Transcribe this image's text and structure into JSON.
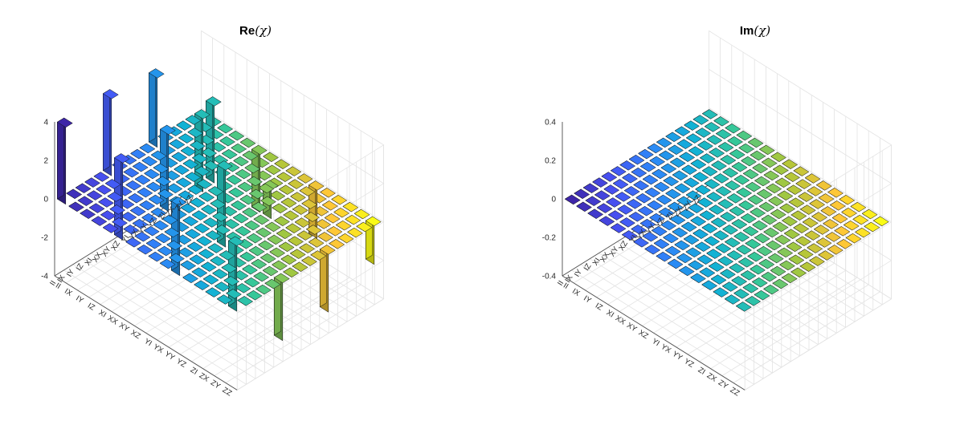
{
  "chart_data": [
    {
      "type": "bar3d",
      "title_text": "Re",
      "title_symbol": "(χ)",
      "zlim": [
        -4,
        4
      ],
      "zticks": [
        {
          "v": -4,
          "label": "-4"
        },
        {
          "v": -2,
          "label": "-2"
        },
        {
          "v": 0,
          "label": "0"
        },
        {
          "v": 2,
          "label": "2"
        },
        {
          "v": 4,
          "label": "4"
        }
      ],
      "row_labels": [
        "II",
        "IX",
        "IY",
        "IZ",
        "XI",
        "XX",
        "XY",
        "XZ",
        "YI",
        "YX",
        "YY",
        "YZ",
        "ZI",
        "ZX",
        "ZY",
        "ZZ"
      ],
      "col_labels": [
        "II",
        "IX",
        "IY",
        "IZ",
        "XI",
        "XX",
        "XY",
        "XZ",
        "YI",
        "YX",
        "YY",
        "YZ",
        "ZI",
        "ZX",
        "ZY",
        "ZZ"
      ],
      "nonzero": [
        {
          "row": 0,
          "col": 0,
          "value": 4.0
        },
        {
          "row": 0,
          "col": 5,
          "value": 4.0
        },
        {
          "row": 0,
          "col": 10,
          "value": 3.6
        },
        {
          "row": 0,
          "col": 15,
          "value": 3.4
        },
        {
          "row": 5,
          "col": 0,
          "value": 4.0
        },
        {
          "row": 5,
          "col": 5,
          "value": 4.0
        },
        {
          "row": 5,
          "col": 10,
          "value": 4.0
        },
        {
          "row": 5,
          "col": 15,
          "value": -3.0
        },
        {
          "row": 10,
          "col": 0,
          "value": 3.6
        },
        {
          "row": 10,
          "col": 5,
          "value": 4.0
        },
        {
          "row": 10,
          "col": 10,
          "value": 1.5
        },
        {
          "row": 10,
          "col": 15,
          "value": -3.0
        },
        {
          "row": 15,
          "col": 0,
          "value": -3.8
        },
        {
          "row": 15,
          "col": 5,
          "value": -3.0
        },
        {
          "row": 15,
          "col": 10,
          "value": -2.5
        },
        {
          "row": 15,
          "col": 15,
          "value": -2.0
        }
      ]
    },
    {
      "type": "bar3d",
      "title_text": "Im",
      "title_symbol": "(χ)",
      "zlim": [
        -0.4,
        0.4
      ],
      "zticks": [
        {
          "v": -0.4,
          "label": "-0.4"
        },
        {
          "v": -0.2,
          "label": "-0.2"
        },
        {
          "v": 0,
          "label": "0"
        },
        {
          "v": 0.2,
          "label": "0.2"
        },
        {
          "v": 0.4,
          "label": "0.4"
        }
      ],
      "row_labels": [
        "II",
        "IX",
        "IY",
        "IZ",
        "XI",
        "XX",
        "XY",
        "XZ",
        "YI",
        "YX",
        "YY",
        "YZ",
        "ZI",
        "ZX",
        "ZY",
        "ZZ"
      ],
      "col_labels": [
        "II",
        "IX",
        "IY",
        "IZ",
        "XI",
        "XX",
        "XY",
        "XZ",
        "YI",
        "YX",
        "YY",
        "YZ",
        "ZI",
        "ZX",
        "ZY",
        "ZZ"
      ],
      "nonzero": []
    }
  ]
}
